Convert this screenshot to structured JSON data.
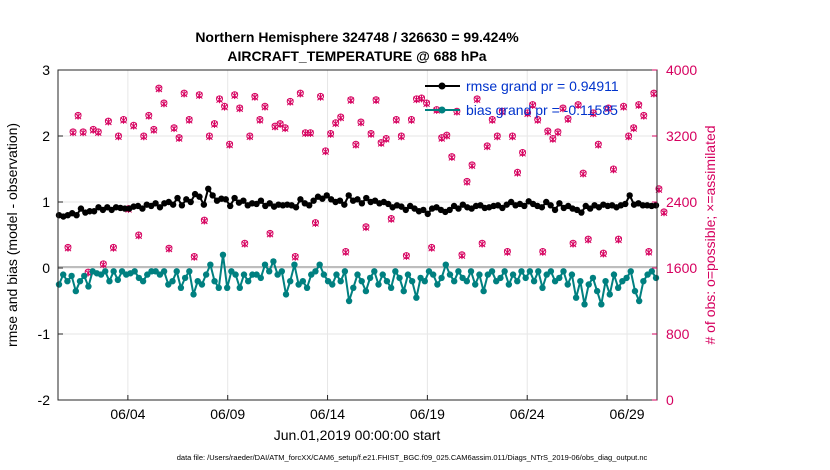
{
  "chart_data": {
    "type": "line",
    "title_line1": "Northern Hemisphere 324748 / 326630 = 99.424%",
    "title_line2": "AIRCRAFT_TEMPERATURE @ 688 hPa",
    "xlabel": "Jun.01,2019 00:00:00 start",
    "ylabel_left": "rmse and bias (model - observation)",
    "ylabel_right": "# of obs: o=possible; ×=assimilated",
    "footer": "data file: /Users/raeder/DAI/ATM_forcXX/CAM6_setup/f.e21.FHIST_BGC.f09_025.CAM6assim.011/Diags_NTrS_2019-06/obs_diag_output.nc",
    "x_range_days": [
      0.5,
      30.5
    ],
    "ylim_left": [
      -2,
      3
    ],
    "ylim_right": [
      0,
      4000
    ],
    "x_ticks": [
      {
        "day": 4,
        "label": "06/04"
      },
      {
        "day": 9,
        "label": "06/09"
      },
      {
        "day": 14,
        "label": "06/14"
      },
      {
        "day": 19,
        "label": "06/19"
      },
      {
        "day": 24,
        "label": "06/24"
      },
      {
        "day": 29,
        "label": "06/29"
      }
    ],
    "y_ticks_left": [
      "3",
      "2",
      "1",
      "0",
      "-1",
      "-2"
    ],
    "y_ticks_right": [
      "4000",
      "3200",
      "2400",
      "1600",
      "800",
      "0"
    ],
    "legend": [
      {
        "label": "rmse grand pr = 0.94911",
        "color": "#000000"
      },
      {
        "label": "bias grand pr = -0.11585",
        "color": "#008080"
      }
    ],
    "colors": {
      "rmse": "#000000",
      "bias": "#008080",
      "obs": "#d6005f",
      "zero_line": "#bdbdbd",
      "legend_text": "#0033cc"
    },
    "series": [
      {
        "name": "rmse",
        "axis": "left",
        "values": [
          0.8,
          0.78,
          0.8,
          0.83,
          0.8,
          0.9,
          0.84,
          0.86,
          0.86,
          0.92,
          0.88,
          0.92,
          0.88,
          0.92,
          0.91,
          0.9,
          0.9,
          0.93,
          0.94,
          0.9,
          0.96,
          0.94,
          0.98,
          0.92,
          0.98,
          1.0,
          0.96,
          1.06,
          0.95,
          1.04,
          1.0,
          1.12,
          1.08,
          0.96,
          1.2,
          1.1,
          1.02,
          1.05,
          1.04,
          0.94,
          1.06,
          0.99,
          1.02,
          0.95,
          0.98,
          0.97,
          1.02,
          0.94,
          0.98,
          0.93,
          0.96,
          0.95,
          0.96,
          0.95,
          0.92,
          1.04,
          0.98,
          0.95,
          1.02,
          1.08,
          1.05,
          1.1,
          1.04,
          1.0,
          1.02,
          0.96,
          1.1,
          1.02,
          1.04,
          0.98,
          1.06,
          1.0,
          1.02,
          0.98,
          1.0,
          0.97,
          0.92,
          0.95,
          0.93,
          0.88,
          0.94,
          0.9,
          0.86,
          0.88,
          0.82,
          0.9,
          0.92,
          0.88,
          0.85,
          0.88,
          0.94,
          0.9,
          0.96,
          0.92,
          0.9,
          0.94,
          0.95,
          0.91,
          0.92,
          0.94,
          0.95,
          0.91,
          0.96,
          1.0,
          0.95,
          0.97,
          0.94,
          1.01,
          0.97,
          0.94,
          0.92,
          1.0,
          0.95,
          0.88,
          0.98,
          0.91,
          0.94,
          0.9,
          0.88,
          0.84,
          0.94,
          0.9,
          0.95,
          0.92,
          0.96,
          0.94,
          0.95,
          0.92,
          0.95,
          0.97,
          1.1,
          0.96,
          0.98,
          0.95,
          0.95,
          0.94,
          0.95
        ]
      },
      {
        "name": "bias",
        "axis": "left",
        "values": [
          -0.25,
          -0.1,
          -0.2,
          -0.12,
          -0.35,
          -0.2,
          -0.12,
          -0.28,
          -0.05,
          -0.08,
          -0.1,
          -0.05,
          -0.2,
          -0.05,
          -0.18,
          -0.05,
          -0.1,
          -0.08,
          -0.05,
          -0.15,
          -0.2,
          -0.1,
          -0.05,
          -0.05,
          -0.1,
          -0.05,
          -0.25,
          -0.2,
          -0.05,
          -0.3,
          -0.15,
          -0.05,
          -0.4,
          -0.2,
          -0.25,
          -0.1,
          0.05,
          -0.2,
          -0.3,
          0.2,
          -0.3,
          -0.05,
          -0.1,
          -0.3,
          -0.1,
          -0.2,
          -0.1,
          -0.1,
          -0.15,
          0.05,
          -0.05,
          0.1,
          -0.1,
          -0.05,
          -0.4,
          -0.2,
          0.05,
          -0.25,
          -0.2,
          -0.3,
          -0.1,
          -0.05,
          0.05,
          -0.1,
          -0.2,
          -0.25,
          -0.1,
          -0.2,
          -0.05,
          -0.5,
          -0.3,
          -0.1,
          -0.2,
          -0.35,
          -0.15,
          -0.05,
          -0.25,
          -0.1,
          -0.2,
          -0.3,
          -0.05,
          -0.15,
          -0.35,
          -0.1,
          -0.2,
          -0.45,
          -0.15,
          -0.2,
          -0.05,
          -0.1,
          -0.25,
          -0.15,
          0.05,
          -0.1,
          -0.2,
          -0.05,
          -0.15,
          -0.2,
          -0.05,
          -0.25,
          -0.1,
          -0.35,
          -0.1,
          -0.05,
          -0.2,
          -0.15,
          -0.05,
          -0.25,
          -0.1,
          -0.2,
          -0.05,
          -0.15,
          -0.05,
          -0.2,
          -0.05,
          -0.3,
          -0.1,
          -0.05,
          -0.2,
          -0.15,
          -0.05,
          -0.25,
          -0.1,
          -0.45,
          -0.2,
          -0.55,
          -0.25,
          -0.15,
          -0.35,
          -0.55,
          -0.2,
          -0.4,
          -0.1,
          -0.3,
          -0.2,
          -0.15,
          -0.05,
          -0.35,
          -0.5,
          -0.2,
          -0.1,
          -0.05,
          -0.15
        ]
      },
      {
        "name": "obs_possible",
        "axis": "right",
        "values": [
          1850,
          3250,
          3450,
          3250,
          1550,
          3280,
          3250,
          1650,
          3380,
          1850,
          3200,
          3400,
          2320,
          3330,
          2000,
          3200,
          3450,
          3280,
          3780,
          3600,
          1840,
          3300,
          3180,
          3720,
          3400,
          1740,
          3700,
          2180,
          3200,
          3350,
          3650,
          3560,
          3100,
          3700,
          3540,
          1900,
          3200,
          3680,
          3400,
          3560,
          2020,
          3320,
          3350,
          3300,
          3620,
          1740,
          3720,
          3240,
          3240,
          2150,
          3680,
          3020,
          3230,
          3360,
          3430,
          1800,
          3640,
          3100,
          3370,
          2100,
          3230,
          3640,
          3120,
          3170,
          2200,
          3400,
          3200,
          1750,
          3400,
          3650,
          3660,
          3600,
          1850,
          3520,
          3180,
          3210,
          2950,
          3500,
          1760,
          2650,
          2850,
          3650,
          1900,
          3080,
          3400,
          3200,
          3500,
          1800,
          3200,
          2760,
          3000,
          3480,
          3580,
          3400,
          1800,
          3260,
          3170,
          3250,
          3540,
          3410,
          1900,
          3580,
          2750,
          1950,
          3480,
          3100,
          1780,
          3540,
          2800,
          1950,
          3560,
          3200,
          3300,
          3580,
          3450,
          1800,
          3720,
          2560,
          2280
        ]
      },
      {
        "name": "obs_assimilated",
        "axis": "right",
        "values": [
          1840,
          3240,
          3440,
          3240,
          1540,
          3270,
          3240,
          1640,
          3370,
          1840,
          3190,
          3390,
          2310,
          3320,
          1990,
          3190,
          3440,
          3270,
          3770,
          3590,
          1830,
          3290,
          3170,
          3710,
          3390,
          1730,
          3690,
          2170,
          3190,
          3340,
          3640,
          3550,
          3090,
          3690,
          3530,
          1890,
          3190,
          3670,
          3390,
          3550,
          2010,
          3310,
          3340,
          3290,
          3610,
          1730,
          3710,
          3230,
          3230,
          2140,
          3670,
          3010,
          3220,
          3350,
          3420,
          1790,
          3630,
          3090,
          3360,
          2090,
          3220,
          3630,
          3110,
          3160,
          2190,
          3390,
          3190,
          1740,
          3390,
          3640,
          3650,
          3590,
          1840,
          3510,
          3170,
          3200,
          2940,
          3490,
          1750,
          2640,
          2840,
          3640,
          1890,
          3070,
          3390,
          3190,
          3490,
          1790,
          3190,
          2750,
          2990,
          3470,
          3570,
          3390,
          1790,
          3250,
          3160,
          3240,
          3530,
          3400,
          1890,
          3570,
          2740,
          1940,
          3470,
          3090,
          1770,
          3530,
          2790,
          1940,
          3550,
          3190,
          3290,
          3570,
          3440,
          1790,
          3710,
          2550,
          2270
        ]
      }
    ]
  }
}
